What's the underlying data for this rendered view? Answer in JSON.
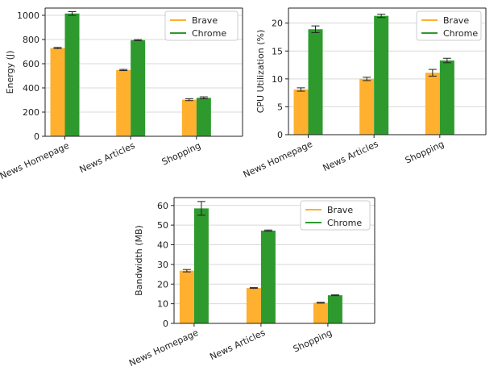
{
  "colors": {
    "brave": "#ffb02e",
    "chrome": "#2e9a2e",
    "grid": "#d9d9d9",
    "axis": "#222222",
    "error": "#222222"
  },
  "chart_data": [
    {
      "type": "bar",
      "categories": [
        "News Homepage",
        "News Articles",
        "Shopping"
      ],
      "ylabel": "Energy (J)",
      "xlabel": "",
      "ylim": [
        0,
        1060
      ],
      "yticks": [
        0,
        200,
        400,
        600,
        800,
        1000
      ],
      "grid": true,
      "legend": "top-right",
      "series": [
        {
          "name": "Brave",
          "values": [
            730,
            548,
            303
          ],
          "errors": [
            5,
            5,
            8
          ]
        },
        {
          "name": "Chrome",
          "values": [
            1015,
            795,
            318
          ],
          "errors": [
            15,
            5,
            8
          ]
        }
      ]
    },
    {
      "type": "bar",
      "categories": [
        "News Homepage",
        "News Articles",
        "Shopping"
      ],
      "ylabel": "CPU Utilization (%)",
      "xlabel": "",
      "ylim": [
        0,
        22.7
      ],
      "yticks": [
        0,
        5,
        10,
        15,
        20
      ],
      "grid": true,
      "legend": "top-right",
      "series": [
        {
          "name": "Brave",
          "values": [
            8.1,
            10.0,
            11.1
          ],
          "errors": [
            0.3,
            0.3,
            0.6
          ]
        },
        {
          "name": "Chrome",
          "values": [
            18.9,
            21.3,
            13.3
          ],
          "errors": [
            0.6,
            0.3,
            0.4
          ]
        }
      ]
    },
    {
      "type": "bar",
      "categories": [
        "News Homepage",
        "News Articles",
        "Shopping"
      ],
      "ylabel": "Bandwidth (MB)",
      "xlabel": "",
      "ylim": [
        0,
        64
      ],
      "yticks": [
        0,
        10,
        20,
        30,
        40,
        50,
        60
      ],
      "grid": true,
      "legend": "top-right",
      "series": [
        {
          "name": "Brave",
          "values": [
            26.8,
            18.0,
            10.5
          ],
          "errors": [
            0.6,
            0.2,
            0.2
          ]
        },
        {
          "name": "Chrome",
          "values": [
            58.5,
            47.2,
            14.3
          ],
          "errors": [
            3.5,
            0.3,
            0.2
          ]
        }
      ]
    }
  ]
}
